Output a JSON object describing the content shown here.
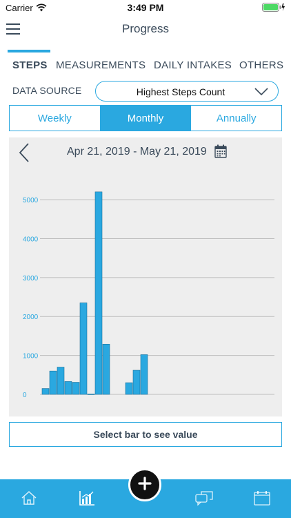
{
  "status_bar": {
    "carrier": "Carrier",
    "time": "3:49 PM"
  },
  "nav": {
    "title": "Progress"
  },
  "tabs": [
    {
      "label": "STEPS",
      "active": true
    },
    {
      "label": "MEASUREMENTS",
      "active": false
    },
    {
      "label": "DAILY INTAKES",
      "active": false
    },
    {
      "label": "OTHERS",
      "active": false
    }
  ],
  "data_source": {
    "label": "DATA SOURCE",
    "value": "Highest Steps Count"
  },
  "periods": [
    {
      "label": "Weekly",
      "active": false
    },
    {
      "label": "Monthly",
      "active": true
    },
    {
      "label": "Annually",
      "active": false
    }
  ],
  "date_range": "Apr 21, 2019 - May 21, 2019",
  "select_bar_label": "Select bar to see value",
  "colors": {
    "accent": "#2aa8e0",
    "bar": "#2aa8e0",
    "panel": "#eeeeee",
    "text": "#3a4a5a"
  },
  "icons": {
    "menu": "menu-icon",
    "wifi": "wifi-icon",
    "battery": "battery-icon",
    "back": "chevron-left-icon",
    "calendar": "calendar-icon",
    "dropdown": "chevron-down-icon",
    "home": "home-icon",
    "progress": "bar-chart-icon",
    "add": "plus-icon",
    "chat": "chat-icon",
    "calendar_tab": "calendar-tab-icon"
  },
  "chart_data": {
    "type": "bar",
    "title": "",
    "xlabel": "",
    "ylabel": "",
    "ylim": [
      0,
      5800
    ],
    "yticks": [
      0,
      1000,
      2000,
      3000,
      4000,
      5000
    ],
    "grid": true,
    "values": [
      150,
      600,
      700,
      330,
      310,
      2350,
      10,
      5200,
      1290,
      0,
      0,
      300,
      620,
      1020,
      0,
      0,
      0,
      0,
      0,
      0,
      0,
      0,
      0,
      0,
      0,
      0,
      0,
      0,
      0,
      0,
      0
    ]
  }
}
